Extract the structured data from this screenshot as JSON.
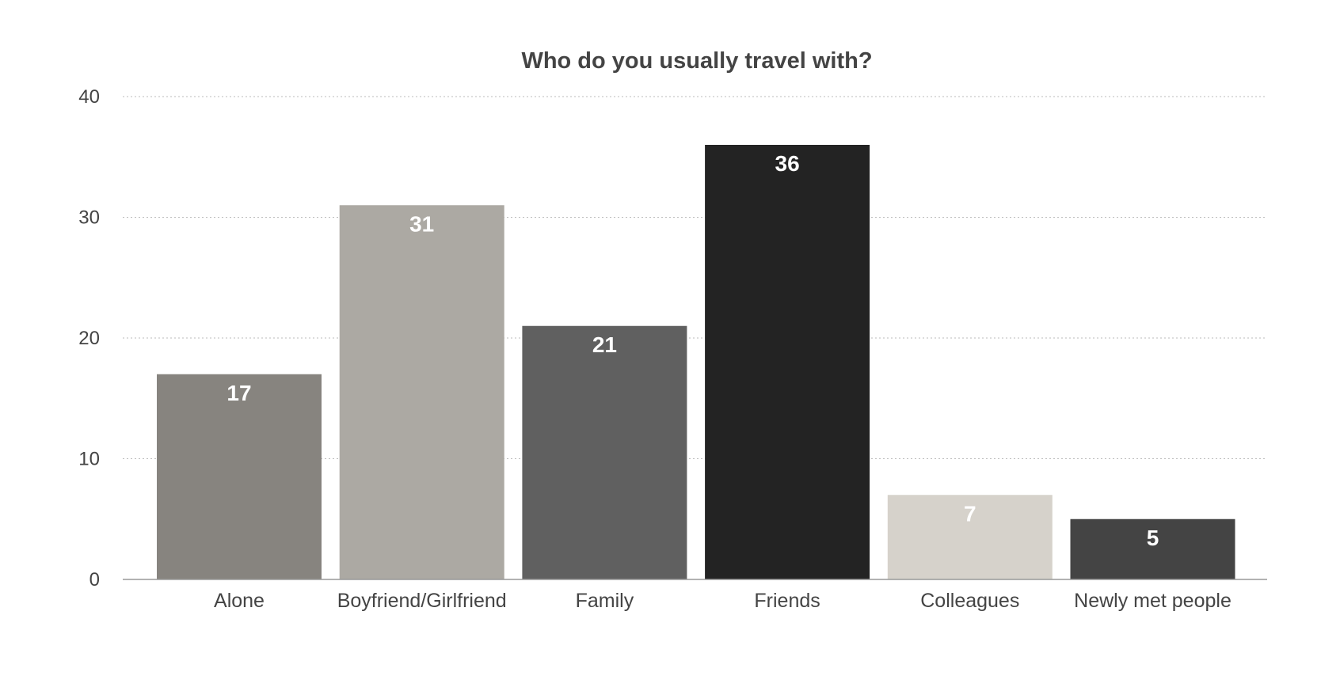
{
  "chart_data": {
    "type": "bar",
    "title": "Who do you usually travel with?",
    "xlabel": "",
    "ylabel": "",
    "categories": [
      "Alone",
      "Boyfriend/Girlfriend",
      "Family",
      "Friends",
      "Colleagues",
      "Newly met people"
    ],
    "values": [
      17,
      31,
      21,
      36,
      7,
      5
    ],
    "data_labels": [
      "17",
      "31",
      "21",
      "36",
      "7",
      "5"
    ],
    "colors": [
      "#87847f",
      "#aca9a3",
      "#606060",
      "#232323",
      "#d6d2cb",
      "#444444"
    ],
    "ylim": [
      0,
      40
    ],
    "yticks": [
      0,
      10,
      20,
      30,
      40
    ],
    "ytick_labels": [
      "0",
      "10",
      "20",
      "30",
      "40"
    ],
    "grid": true,
    "legend": "none"
  }
}
